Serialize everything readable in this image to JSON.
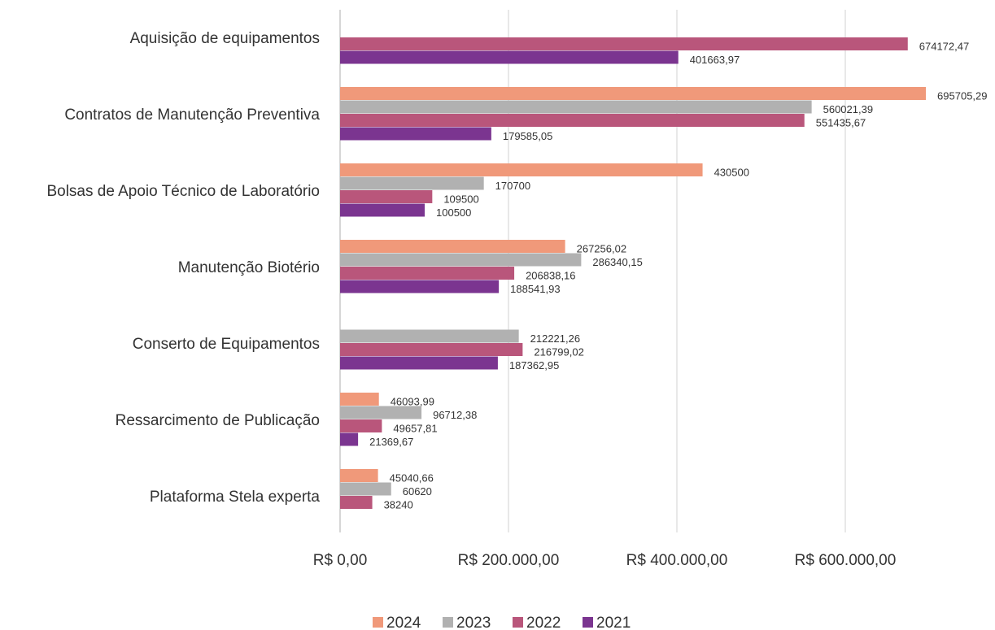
{
  "chart_data": {
    "type": "hbar",
    "categories": [
      "Aquisição de equipamentos",
      "Contratos de Manutenção Preventiva",
      "Bolsas de Apoio Técnico de Laboratório",
      "Manutenção Biotério",
      "Conserto de Equipamentos",
      "Ressarcimento de Publicação",
      "Plataforma Stela experta"
    ],
    "series": [
      {
        "name": "2024",
        "color": "#f0997a",
        "values": [
          null,
          695705.29,
          430500,
          267256.02,
          null,
          46093.99,
          45040.66
        ],
        "value_labels": [
          null,
          "695705,29",
          "430500",
          "267256,02",
          null,
          "46093,99",
          "45040,66"
        ]
      },
      {
        "name": "2023",
        "color": "#b1b1b1",
        "values": [
          null,
          560021.39,
          170700,
          286340.15,
          212221.26,
          96712.38,
          60620
        ],
        "value_labels": [
          null,
          "560021,39",
          "170700",
          "286340,15",
          "212221,26",
          "96712,38",
          "60620"
        ]
      },
      {
        "name": "2022",
        "color": "#b9567b",
        "values": [
          674172.47,
          551435.67,
          109500,
          206838.16,
          216799.02,
          49657.81,
          38240
        ],
        "value_labels": [
          "674172,47",
          "551435,67",
          "109500",
          "206838,16",
          "216799,02",
          "49657,81",
          "38240"
        ]
      },
      {
        "name": "2021",
        "color": "#7b3590",
        "values": [
          401663.97,
          179585.05,
          100500,
          188541.93,
          187362.95,
          21369.67,
          null
        ],
        "value_labels": [
          "401663,97",
          "179585,05",
          "100500",
          "188541,93",
          "187362,95",
          "21369,67",
          null
        ]
      }
    ],
    "xlim": [
      0,
      700000
    ],
    "xticks": [
      {
        "value": 0,
        "label": "R$ 0,00"
      },
      {
        "value": 200000,
        "label": "R$ 200.000,00"
      },
      {
        "value": 400000,
        "label": "R$ 400.000,00"
      },
      {
        "value": 600000,
        "label": "R$ 600.000,00"
      }
    ],
    "grid": true,
    "legend": "bottom"
  }
}
